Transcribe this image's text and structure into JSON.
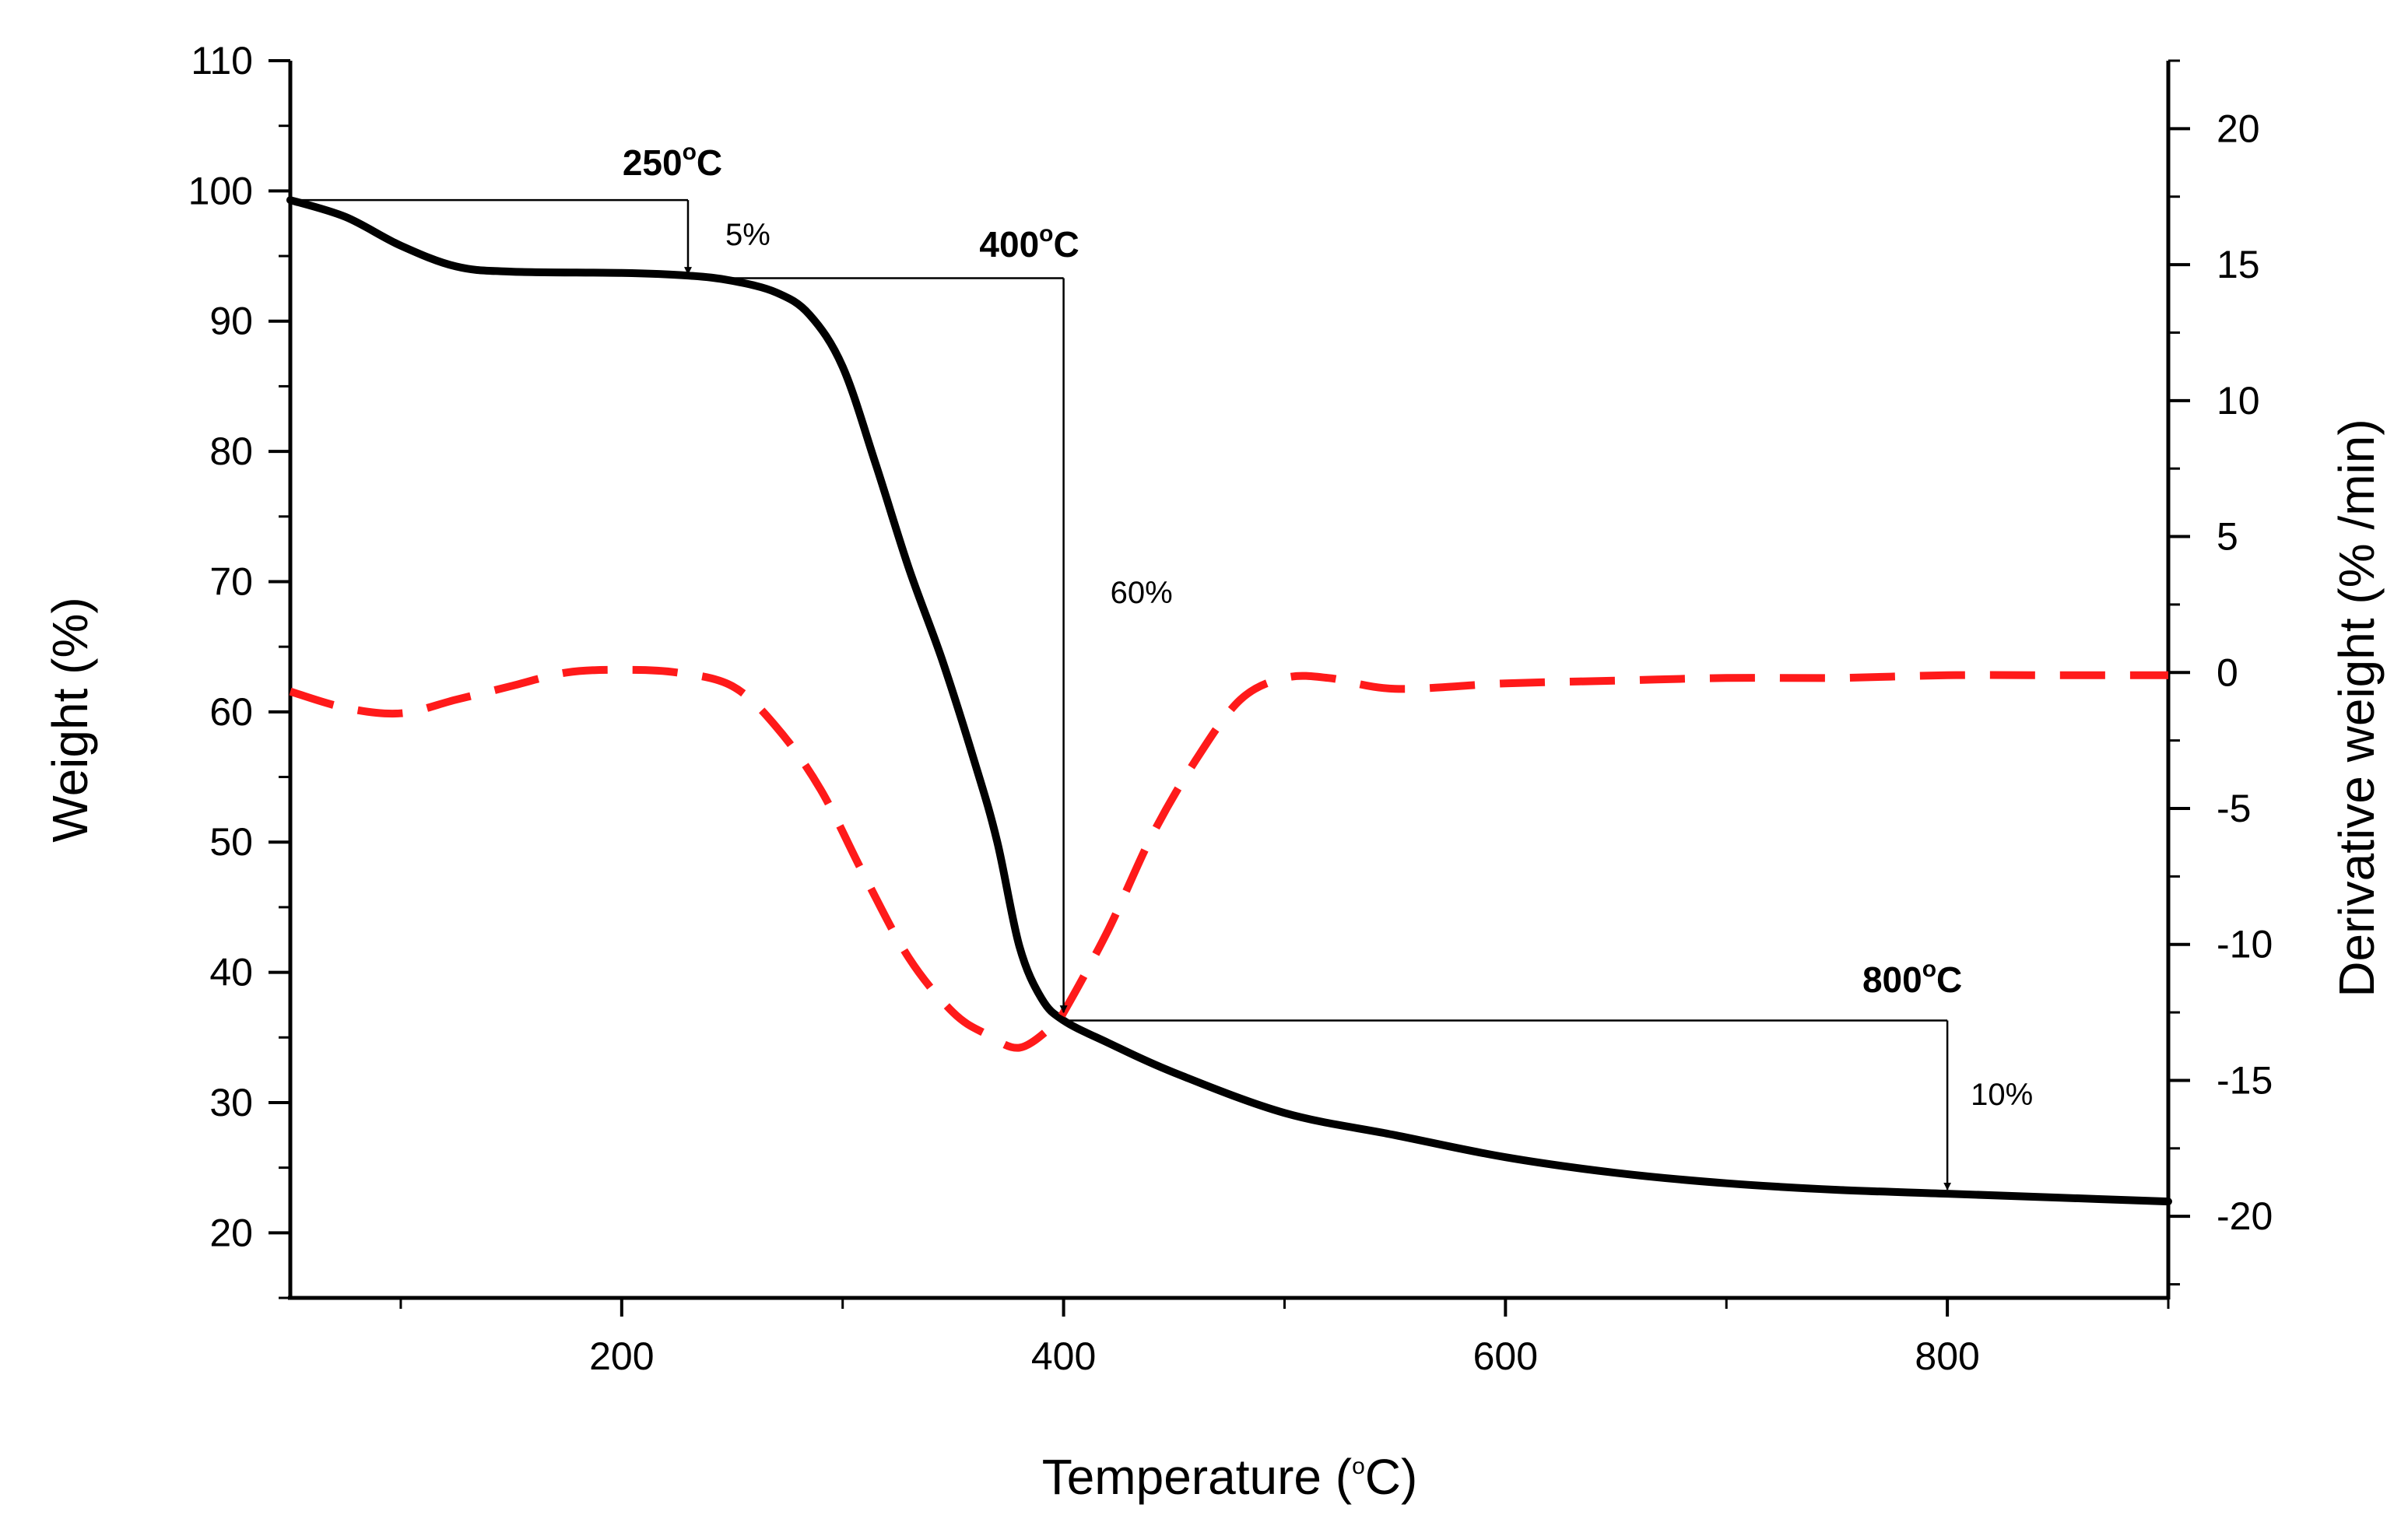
{
  "chart_data": {
    "type": "line",
    "title": "",
    "xlabel": {
      "prefix": "Temperature (",
      "sup": "o",
      "suffix": "C)"
    },
    "ylabel": "Weight (%)",
    "y2label": "Derivative weight (% /min)",
    "xlim": [
      50,
      900
    ],
    "ylim": [
      15,
      110
    ],
    "y2lim": [
      -23,
      22.5
    ],
    "x_ticks": [
      200,
      400,
      600,
      800
    ],
    "x_minor_ticks": [
      100,
      300,
      500,
      700,
      900
    ],
    "y_ticks": [
      20,
      30,
      40,
      50,
      60,
      70,
      80,
      90,
      100,
      110
    ],
    "y2_ticks": [
      -20,
      -15,
      -10,
      -5,
      0,
      5,
      10,
      15,
      20
    ],
    "colors": {
      "weight": "#000000",
      "derivative": "#ff1a1a",
      "annotation": "#000000"
    },
    "series": [
      {
        "name": "Weight",
        "axis": "left",
        "style": "solid",
        "x": [
          50,
          75,
          100,
          125,
          150,
          200,
          230,
          250,
          270,
          285,
          300,
          315,
          330,
          345,
          360,
          370,
          380,
          390,
          400,
          420,
          450,
          500,
          550,
          600,
          650,
          700,
          750,
          800,
          850,
          900
        ],
        "y": [
          99.3,
          98,
          95.8,
          94.2,
          93.8,
          93.7,
          93.5,
          93.1,
          92.2,
          90.5,
          86.5,
          79,
          71,
          64,
          56,
          50,
          42,
          38,
          36.3,
          34.6,
          32.3,
          29.2,
          27.5,
          25.8,
          24.6,
          23.8,
          23.3,
          23.0,
          22.7,
          22.4
        ]
      },
      {
        "name": "Derivative weight",
        "axis": "right",
        "style": "dashed",
        "x": [
          50,
          75,
          100,
          125,
          150,
          175,
          200,
          225,
          250,
          270,
          290,
          310,
          330,
          350,
          365,
          380,
          395,
          400,
          420,
          440,
          460,
          480,
          500,
          520,
          550,
          600,
          650,
          700,
          750,
          800,
          850,
          900
        ],
        "y": [
          -0.7,
          -1.3,
          -1.5,
          -1.0,
          -0.5,
          0.0,
          0.1,
          0.0,
          -0.5,
          -2.0,
          -4.3,
          -7.5,
          -10.5,
          -12.5,
          -13.3,
          -13.8,
          -13.0,
          -12.5,
          -9.5,
          -6.0,
          -3.2,
          -1.0,
          -0.2,
          -0.2,
          -0.6,
          -0.4,
          -0.3,
          -0.2,
          -0.2,
          -0.1,
          -0.1,
          -0.1
        ]
      }
    ],
    "annotations": [
      {
        "label_main": "250",
        "label_sup": "o",
        "label_tail": "C",
        "percent": "5%"
      },
      {
        "label_main": "400",
        "label_sup": "o",
        "label_tail": "C",
        "percent": "60%"
      },
      {
        "label_main": "800",
        "label_sup": "o",
        "label_tail": "C",
        "percent": "10%"
      }
    ]
  }
}
